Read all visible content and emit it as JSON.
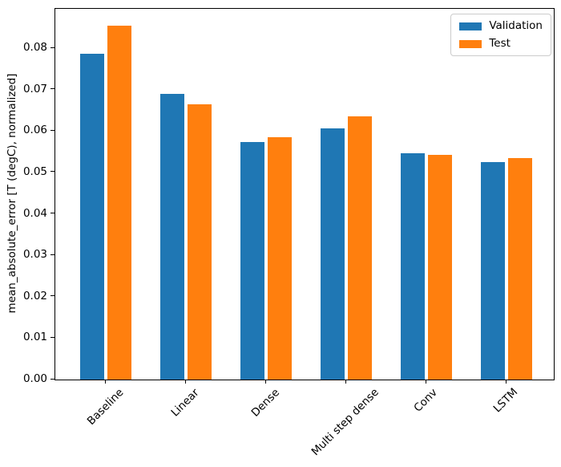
{
  "chart_data": {
    "type": "bar",
    "title": "",
    "xlabel": "",
    "ylabel": "mean_absolute_error [T (degC), normalized]",
    "categories": [
      "Baseline",
      "Linear",
      "Dense",
      "Multi step dense",
      "Conv",
      "LSTM"
    ],
    "series": [
      {
        "name": "Validation",
        "color": "#1f77b4",
        "values": [
          0.0787,
          0.0689,
          0.0573,
          0.0607,
          0.0546,
          0.0525
        ]
      },
      {
        "name": "Test",
        "color": "#ff7f0e",
        "values": [
          0.0854,
          0.0664,
          0.0585,
          0.0635,
          0.0543,
          0.0534
        ]
      }
    ],
    "ylim": [
      0,
      0.0895
    ],
    "ytick_labels": [
      "0.00",
      "0.01",
      "0.02",
      "0.03",
      "0.04",
      "0.05",
      "0.06",
      "0.07",
      "0.08"
    ],
    "xtick_rotation_deg": 45,
    "grid": false,
    "legend": {
      "position": "upper right",
      "entries": [
        "Validation",
        "Test"
      ]
    },
    "axis_color": "#000000",
    "background_color": "#ffffff"
  }
}
